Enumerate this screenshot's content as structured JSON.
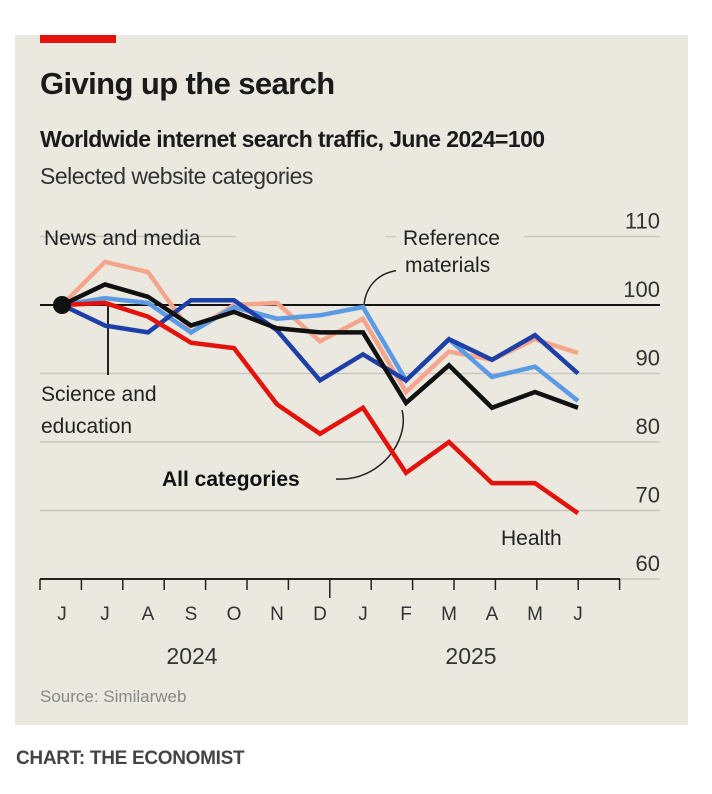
{
  "chart_data": {
    "type": "line",
    "title": "Giving up the search",
    "subtitle": "Worldwide internet search traffic, June 2024=100",
    "subsubtitle": "Selected website categories",
    "source": "Source: Similarweb",
    "credit": "CHART: THE ECONOMIST",
    "x": [
      "Jun 2024",
      "Jul 2024",
      "Aug 2024",
      "Sep 2024",
      "Oct 2024",
      "Nov 2024",
      "Dec 2024",
      "Jan 2025",
      "Feb 2025",
      "Mar 2025",
      "Apr 2025",
      "May 2025",
      "Jun 2025"
    ],
    "x_tick_labels": [
      "J",
      "J",
      "A",
      "S",
      "O",
      "N",
      "D",
      "J",
      "F",
      "M",
      "A",
      "M",
      "J"
    ],
    "year_labels": [
      "2024",
      "2025"
    ],
    "y_ticks": [
      "110",
      "100",
      "90",
      "80",
      "70",
      "60"
    ],
    "ylim": [
      60,
      110
    ],
    "grid": true,
    "series": [
      {
        "name": "News and media",
        "color": "#f4a58c",
        "values": [
          100,
          106.3,
          104.8,
          96,
          100,
          100.3,
          94.7,
          98,
          87.3,
          93.2,
          92,
          95,
          93
        ]
      },
      {
        "name": "Reference materials",
        "color": "#5b9be3",
        "values": [
          100,
          101,
          100.3,
          96,
          99.7,
          98,
          98.5,
          99.7,
          89,
          95,
          89.5,
          91,
          86
        ]
      },
      {
        "name": "Science and education",
        "color": "#1f3fa8",
        "values": [
          100,
          97,
          96,
          100.7,
          100.7,
          96.3,
          89,
          92.8,
          89,
          95,
          92,
          95.6,
          90
        ]
      },
      {
        "name": "All categories",
        "color": "#111111",
        "values": [
          100,
          103,
          101.2,
          97,
          99,
          96.6,
          96,
          96,
          85.7,
          91.2,
          85,
          87.3,
          85
        ]
      },
      {
        "name": "Health",
        "color": "#e3120b",
        "values": [
          100,
          100.3,
          98.3,
          94.5,
          93.7,
          85.5,
          81.2,
          85,
          75.5,
          80,
          74,
          74,
          69.6
        ]
      }
    ]
  }
}
